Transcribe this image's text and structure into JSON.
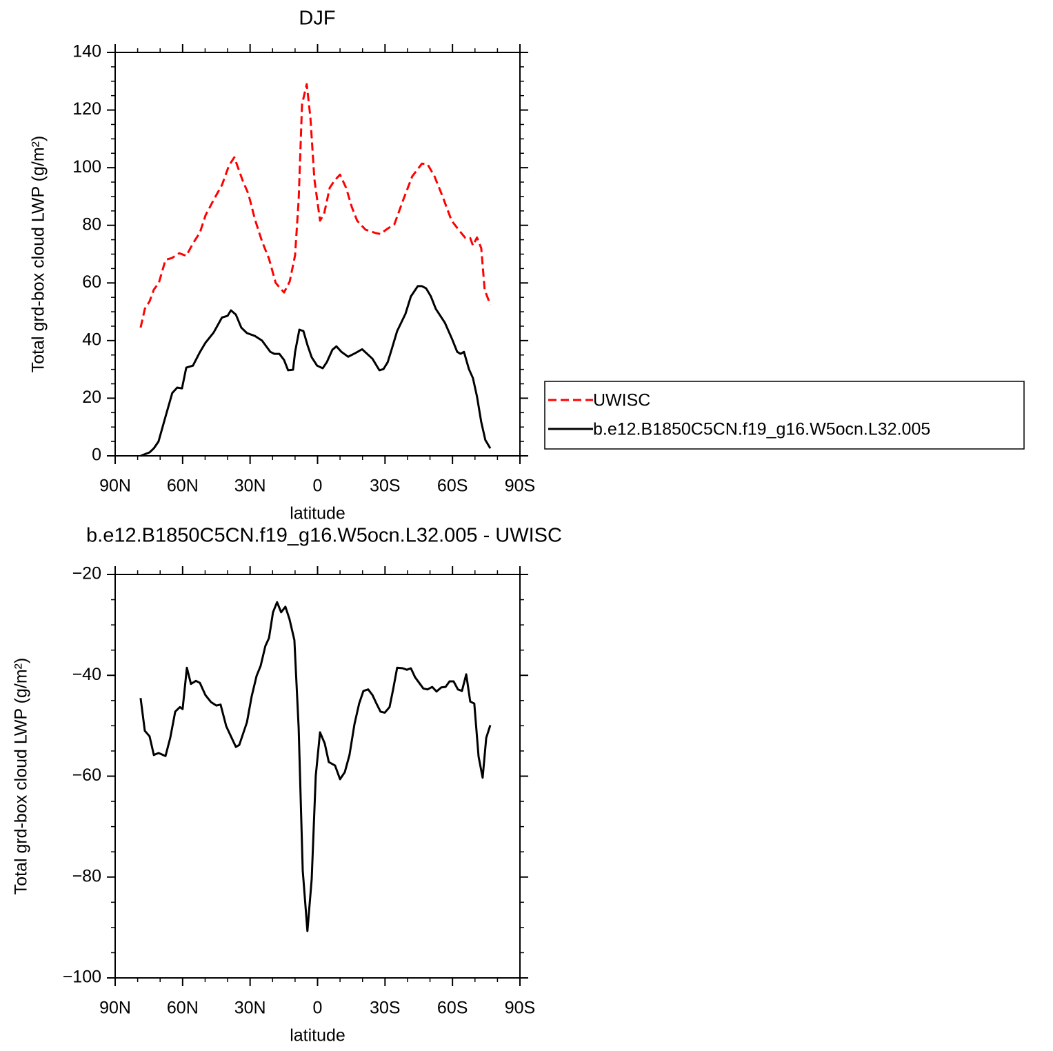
{
  "chart_data": [
    {
      "type": "line",
      "title": "DJF",
      "x_label": "latitude",
      "y_label": "Total grd-box cloud LWP (g/m²)",
      "xlim": [
        90,
        -90
      ],
      "xticks": [
        {
          "value": 90,
          "label": "90N"
        },
        {
          "value": 60,
          "label": "60N"
        },
        {
          "value": 30,
          "label": "30N"
        },
        0,
        {
          "value": -30,
          "label": "30S"
        },
        {
          "value": -60,
          "label": "60S"
        },
        {
          "value": -90,
          "label": "90S"
        }
      ],
      "ylim": [
        0,
        140
      ],
      "yticks": [
        0,
        20,
        40,
        60,
        80,
        100,
        120,
        140
      ],
      "legend": "right",
      "series": [
        {
          "name": "UWISC",
          "color": "#ff0000",
          "dash": "dashed",
          "x": [
            78.7,
            76.8,
            74.7,
            72.8,
            70.6,
            67.6,
            64.6,
            61.5,
            58.4,
            55.4,
            52.3,
            49.8,
            46.2,
            42.5,
            39.4,
            37,
            33.3,
            30.8,
            27.8,
            24.7,
            21.6,
            18.6,
            14.9,
            12.4,
            10,
            8.4,
            6.9,
            4.8,
            3.2,
            1.4,
            -1.1,
            -2.9,
            -5.4,
            -7.5,
            -10,
            -12.7,
            -15.2,
            -17.6,
            -21.3,
            -25.9,
            -28,
            -30.5,
            -34.2,
            -38.1,
            -42.1,
            -46.4,
            -48.9,
            -52,
            -55.6,
            -59.6,
            -62.7,
            -65.7,
            -67.9,
            -69.1,
            -70.9,
            -72.8,
            -74.3,
            -76.8
          ],
          "values": [
            44.5,
            51,
            53.6,
            57.7,
            60,
            68,
            68.7,
            70.3,
            69.4,
            73.7,
            77.5,
            83.5,
            88.8,
            94,
            100.7,
            103.6,
            95.5,
            91,
            82,
            74.4,
            68.4,
            60,
            56.7,
            60.5,
            69.6,
            88.8,
            122,
            129,
            117.5,
            96,
            81.6,
            84,
            93,
            95.5,
            97.6,
            93,
            86.4,
            81.6,
            78.5,
            77.3,
            77,
            78.5,
            80.4,
            88.8,
            97,
            101.4,
            101.2,
            97,
            90,
            81.6,
            78.5,
            75.6,
            75.6,
            73,
            75.8,
            72,
            57.7,
            52.4
          ]
        },
        {
          "name": "b.e12.B1850C5CN.f19_g16.W5ocn.L32.005",
          "color": "#000000",
          "dash": "solid",
          "x": [
            78.7,
            74.7,
            72.8,
            70.7,
            67.6,
            64.6,
            62.4,
            60.3,
            58.4,
            55.4,
            52.3,
            49.9,
            46.2,
            42.5,
            40,
            38.5,
            36.3,
            33.9,
            31.4,
            27.8,
            24.7,
            21,
            19.2,
            17,
            14.9,
            13.1,
            10.9,
            10,
            8.1,
            6.3,
            4.5,
            2.6,
            0.2,
            -2.3,
            -4.1,
            -6.6,
            -8.4,
            -10.6,
            -13.6,
            -16.7,
            -19.8,
            -24.4,
            -27.5,
            -29.3,
            -31.2,
            -32.9,
            -35.4,
            -39.1,
            -41.5,
            -44.6,
            -46.4,
            -48.3,
            -50.4,
            -52.6,
            -56.6,
            -59.9,
            -62.1,
            -63.6,
            -65.1,
            -67.3,
            -69.1,
            -70.9,
            -72.8,
            -74.6,
            -76.8
          ],
          "values": [
            0,
            1.2,
            2.6,
            5,
            13.6,
            21.8,
            23.7,
            23.4,
            30.6,
            31.3,
            36,
            39.2,
            42.8,
            48,
            48.6,
            50.5,
            49,
            44.5,
            42.6,
            41.6,
            40,
            36.1,
            35.4,
            35.4,
            33.3,
            29.7,
            29.9,
            36,
            43.8,
            43.3,
            38.5,
            34.2,
            31.3,
            30.4,
            32.5,
            36.8,
            38,
            36.1,
            34.4,
            35.6,
            37,
            33.7,
            29.7,
            30.1,
            32.5,
            36.8,
            43.3,
            49.3,
            55.3,
            58.9,
            58.9,
            58.1,
            55.3,
            51,
            46.2,
            40.4,
            36.1,
            35.4,
            36.1,
            30.1,
            27,
            20.6,
            11.7,
            5.5,
            2.6
          ]
        }
      ]
    },
    {
      "type": "line",
      "title": "b.e12.B1850C5CN.f19_g16.W5ocn.L32.005 - UWISC",
      "x_label": "latitude",
      "y_label": "Total grd-box cloud LWP (g/m²)",
      "xlim": [
        90,
        -90
      ],
      "xticks": [
        {
          "value": 90,
          "label": "90N"
        },
        {
          "value": 60,
          "label": "60N"
        },
        {
          "value": 30,
          "label": "30N"
        },
        0,
        {
          "value": -30,
          "label": "30S"
        },
        {
          "value": -60,
          "label": "60S"
        },
        {
          "value": -90,
          "label": "90S"
        }
      ],
      "ylim": [
        -100,
        -20
      ],
      "yticks": [
        {
          "value": -100,
          "label": "−100"
        },
        {
          "value": -80,
          "label": "−80"
        },
        {
          "value": -60,
          "label": "−60"
        },
        {
          "value": -40,
          "label": "−40"
        },
        {
          "value": -20,
          "label": "−20"
        }
      ],
      "color": "#000000",
      "dash": "solid",
      "x": [
        78.7,
        76.8,
        74.7,
        72.8,
        70.7,
        67.6,
        65.5,
        63.3,
        61.2,
        60,
        58.1,
        56.3,
        54.1,
        52.3,
        49.9,
        47.4,
        45,
        43.1,
        40.6,
        38.5,
        36.3,
        34.8,
        31.4,
        29.3,
        27.1,
        25.3,
        23.2,
        21.6,
        19.8,
        18,
        16.2,
        14.3,
        12.5,
        10.3,
        8.4,
        6.6,
        4.5,
        2.6,
        0.8,
        -1.1,
        -3.2,
        -5,
        -7.8,
        -10,
        -12.1,
        -14.2,
        -16.4,
        -18.5,
        -20.4,
        -22.5,
        -24.4,
        -26.2,
        -28,
        -29.9,
        -32,
        -33.6,
        -35.4,
        -37.9,
        -39.7,
        -41.5,
        -43.4,
        -45.2,
        -47,
        -48.9,
        -51,
        -52.9,
        -55,
        -56.9,
        -58.7,
        -60.5,
        -62.4,
        -64.2,
        -66.1,
        -67.9,
        -69.7,
        -71.6,
        -73.4,
        -75,
        -76.8
      ],
      "values": [
        -44.5,
        -51,
        -52.1,
        -55.8,
        -55.4,
        -56,
        -52.4,
        -47.2,
        -46.3,
        -46.7,
        -38.5,
        -41.7,
        -41.1,
        -41.5,
        -43.9,
        -45.3,
        -46,
        -45.8,
        -50.1,
        -52.1,
        -54.2,
        -53.8,
        -49.3,
        -44.2,
        -40.1,
        -38.1,
        -34.2,
        -32.6,
        -27.5,
        -25.5,
        -27.5,
        -26.4,
        -28.8,
        -33,
        -50.4,
        -78.7,
        -90.7,
        -80.4,
        -59.9,
        -51.3,
        -53.5,
        -57.2,
        -57.9,
        -60.6,
        -59.2,
        -55.8,
        -49.7,
        -45.6,
        -43.1,
        -42.8,
        -43.9,
        -45.6,
        -47.2,
        -47.4,
        -46.3,
        -42.8,
        -38.5,
        -38.6,
        -38.9,
        -38.6,
        -40.4,
        -41.5,
        -42.6,
        -42.8,
        -42.3,
        -43.2,
        -42.4,
        -42.3,
        -41.2,
        -41.2,
        -42.8,
        -43.1,
        -39.8,
        -45.2,
        -45.6,
        -56.1,
        -60.3,
        -52.4,
        -49.9
      ]
    }
  ]
}
